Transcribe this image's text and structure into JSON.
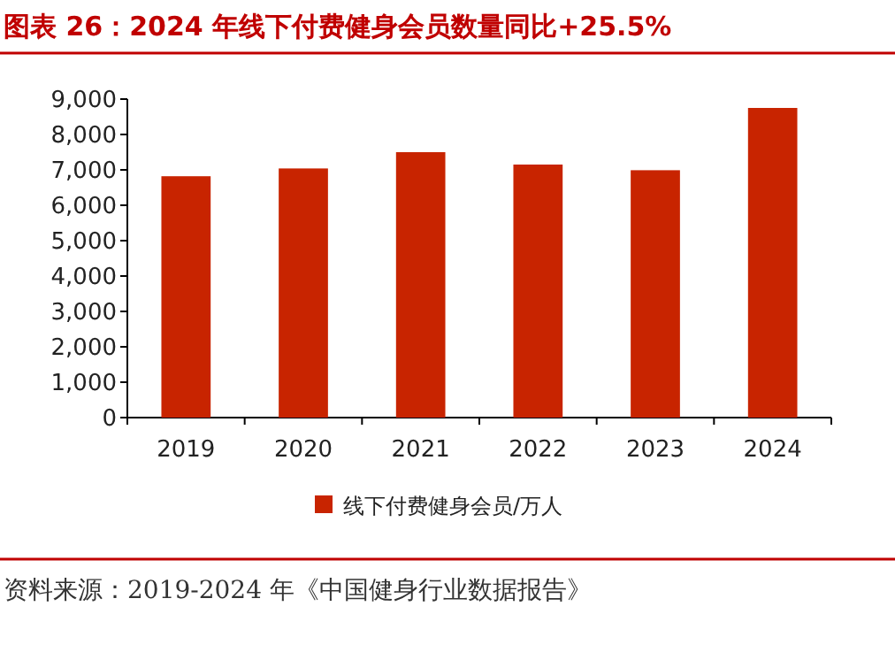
{
  "chart_data": {
    "type": "bar",
    "title": "图表 26：2024 年线下付费健身会员数量同比+25.5%",
    "categories": [
      "2019",
      "2020",
      "2021",
      "2022",
      "2023",
      "2024"
    ],
    "series": [
      {
        "name": "线下付费健身会员/万人",
        "color": "#c82400",
        "values": [
          6820,
          7040,
          7500,
          7150,
          6990,
          8750
        ]
      }
    ],
    "ylim": [
      0,
      9000
    ],
    "yticks": [
      {
        "value": 0,
        "label": "0"
      },
      {
        "value": 1000,
        "label": "1,000"
      },
      {
        "value": 2000,
        "label": "2,000"
      },
      {
        "value": 3000,
        "label": "3,000"
      },
      {
        "value": 4000,
        "label": "4,000"
      },
      {
        "value": 5000,
        "label": "5,000"
      },
      {
        "value": 6000,
        "label": "6,000"
      },
      {
        "value": 7000,
        "label": "7,000"
      },
      {
        "value": 8000,
        "label": "8,000"
      },
      {
        "value": 9000,
        "label": "9,000"
      }
    ],
    "legend": "bottom",
    "grid": false,
    "annotations": [
      "资料来源：2019-2024 年《中国健身行业数据报告》"
    ]
  }
}
